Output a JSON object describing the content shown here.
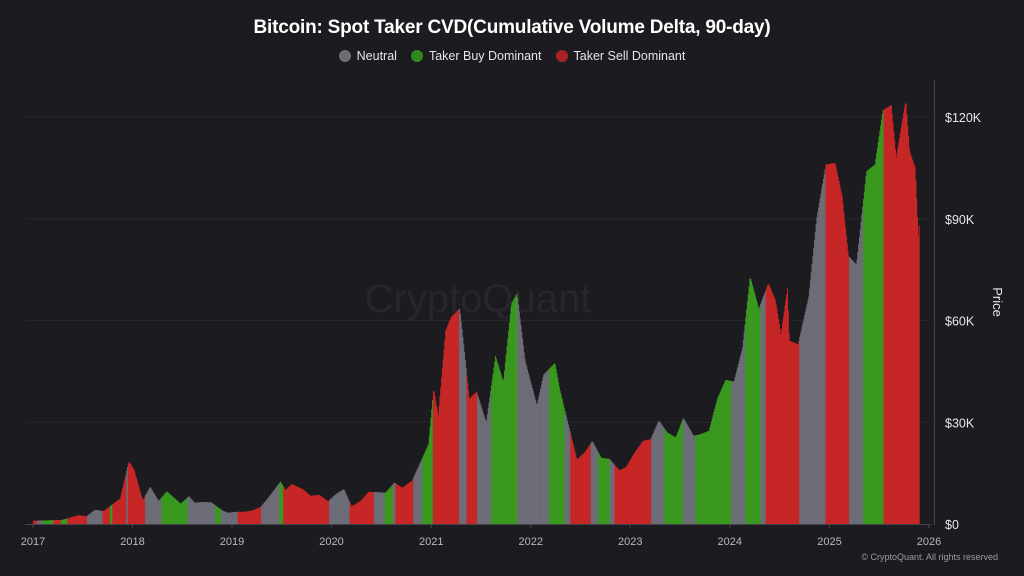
{
  "chart_data": {
    "type": "bar",
    "title": "Bitcoin: Spot Taker CVD(Cumulative Volume Delta, 90-day)",
    "ylabel": "Price",
    "xlabel": "",
    "ylim": [
      0,
      132000
    ],
    "xlim": [
      "2017-01-01",
      "2026-01-01"
    ],
    "grid": true,
    "legend_position": "top-center",
    "x_ticks": [
      "2017",
      "2018",
      "2019",
      "2020",
      "2021",
      "2022",
      "2023",
      "2024",
      "2025",
      "2026"
    ],
    "y_ticks": [
      {
        "value": 0,
        "label": "$0"
      },
      {
        "value": 30000,
        "label": "$30K"
      },
      {
        "value": 60000,
        "label": "$60K"
      },
      {
        "value": 90000,
        "label": "$90K"
      },
      {
        "value": 120000,
        "label": "$120K"
      }
    ],
    "legend": [
      {
        "key": "neutral",
        "name": "Neutral",
        "color": "#6e6e79"
      },
      {
        "key": "buy",
        "name": "Taker Buy Dominant",
        "color": "#3a9a1f"
      },
      {
        "key": "sell",
        "name": "Taker Sell Dominant",
        "color": "#c92727"
      }
    ],
    "price": [
      [
        "2017-01-01",
        1000
      ],
      [
        "2017-02-15",
        1050
      ],
      [
        "2017-03-15",
        1150
      ],
      [
        "2017-04-15",
        1200
      ],
      [
        "2017-05-20",
        2000
      ],
      [
        "2017-06-15",
        2600
      ],
      [
        "2017-07-15",
        2300
      ],
      [
        "2017-08-15",
        4200
      ],
      [
        "2017-09-15",
        3800
      ],
      [
        "2017-10-15",
        5600
      ],
      [
        "2017-11-15",
        7500
      ],
      [
        "2017-12-17",
        18500
      ],
      [
        "2018-01-05",
        16000
      ],
      [
        "2018-02-06",
        7000
      ],
      [
        "2018-03-05",
        11000
      ],
      [
        "2018-04-05",
        6800
      ],
      [
        "2018-05-05",
        9600
      ],
      [
        "2018-06-25",
        6000
      ],
      [
        "2018-07-25",
        8200
      ],
      [
        "2018-08-15",
        6300
      ],
      [
        "2018-09-15",
        6500
      ],
      [
        "2018-10-15",
        6400
      ],
      [
        "2018-11-25",
        4000
      ],
      [
        "2018-12-15",
        3300
      ],
      [
        "2019-01-15",
        3600
      ],
      [
        "2019-02-15",
        3600
      ],
      [
        "2019-03-15",
        4000
      ],
      [
        "2019-04-15",
        5100
      ],
      [
        "2019-05-15",
        8000
      ],
      [
        "2019-06-26",
        12500
      ],
      [
        "2019-07-15",
        10000
      ],
      [
        "2019-08-06",
        11800
      ],
      [
        "2019-09-15",
        10300
      ],
      [
        "2019-10-15",
        8300
      ],
      [
        "2019-11-15",
        8600
      ],
      [
        "2019-12-18",
        6700
      ],
      [
        "2020-01-15",
        8800
      ],
      [
        "2020-02-14",
        10300
      ],
      [
        "2020-03-13",
        5200
      ],
      [
        "2020-04-15",
        6800
      ],
      [
        "2020-05-15",
        9500
      ],
      [
        "2020-06-15",
        9400
      ],
      [
        "2020-07-15",
        9200
      ],
      [
        "2020-08-17",
        12200
      ],
      [
        "2020-09-15",
        10700
      ],
      [
        "2020-10-21",
        12800
      ],
      [
        "2020-11-25",
        19000
      ],
      [
        "2020-12-20",
        23500
      ],
      [
        "2021-01-08",
        40000
      ],
      [
        "2021-01-25",
        32000
      ],
      [
        "2021-02-21",
        57000
      ],
      [
        "2021-03-13",
        61000
      ],
      [
        "2021-04-14",
        63500
      ],
      [
        "2021-05-19",
        37000
      ],
      [
        "2021-06-15",
        39000
      ],
      [
        "2021-07-20",
        30000
      ],
      [
        "2021-08-23",
        49500
      ],
      [
        "2021-09-21",
        42000
      ],
      [
        "2021-10-20",
        65000
      ],
      [
        "2021-11-10",
        68000
      ],
      [
        "2021-12-10",
        48000
      ],
      [
        "2022-01-22",
        35000
      ],
      [
        "2022-02-15",
        44000
      ],
      [
        "2022-03-29",
        47500
      ],
      [
        "2022-04-15",
        40000
      ],
      [
        "2022-05-15",
        30000
      ],
      [
        "2022-06-18",
        19000
      ],
      [
        "2022-07-15",
        21000
      ],
      [
        "2022-08-13",
        24500
      ],
      [
        "2022-09-15",
        19500
      ],
      [
        "2022-10-15",
        19200
      ],
      [
        "2022-11-21",
        15800
      ],
      [
        "2022-12-15",
        16800
      ],
      [
        "2023-01-15",
        21000
      ],
      [
        "2023-02-15",
        24500
      ],
      [
        "2023-03-15",
        25000
      ],
      [
        "2023-04-14",
        30500
      ],
      [
        "2023-05-15",
        27000
      ],
      [
        "2023-06-15",
        25500
      ],
      [
        "2023-07-13",
        31300
      ],
      [
        "2023-08-20",
        26000
      ],
      [
        "2023-09-15",
        26500
      ],
      [
        "2023-10-15",
        27500
      ],
      [
        "2023-11-15",
        37000
      ],
      [
        "2023-12-15",
        42500
      ],
      [
        "2024-01-15",
        42000
      ],
      [
        "2024-02-15",
        52000
      ],
      [
        "2024-03-14",
        73000
      ],
      [
        "2024-04-15",
        63500
      ],
      [
        "2024-05-20",
        71000
      ],
      [
        "2024-06-15",
        66000
      ],
      [
        "2024-07-05",
        56000
      ],
      [
        "2024-07-29",
        69500
      ],
      [
        "2024-08-05",
        54000
      ],
      [
        "2024-09-06",
        53000
      ],
      [
        "2024-10-15",
        67000
      ],
      [
        "2024-11-13",
        90000
      ],
      [
        "2024-12-17",
        106000
      ],
      [
        "2025-01-20",
        106500
      ],
      [
        "2025-02-15",
        96500
      ],
      [
        "2025-03-10",
        79000
      ],
      [
        "2025-04-08",
        76500
      ],
      [
        "2025-05-15",
        104000
      ],
      [
        "2025-06-15",
        106000
      ],
      [
        "2025-07-14",
        122000
      ],
      [
        "2025-08-14",
        123500
      ],
      [
        "2025-09-01",
        108000
      ],
      [
        "2025-10-06",
        125000
      ],
      [
        "2025-10-20",
        110000
      ],
      [
        "2025-11-10",
        105000
      ],
      [
        "2025-11-21",
        85000
      ],
      [
        "2025-11-25",
        89000
      ]
    ],
    "regimes": [
      [
        "2017-01-01",
        "2017-01-15",
        "sell"
      ],
      [
        "2017-01-15",
        "2017-02-02",
        "neutral"
      ],
      [
        "2017-02-02",
        "2017-03-17",
        "buy"
      ],
      [
        "2017-03-17",
        "2017-04-12",
        "sell"
      ],
      [
        "2017-04-12",
        "2017-05-05",
        "buy"
      ],
      [
        "2017-05-05",
        "2017-07-16",
        "sell"
      ],
      [
        "2017-07-16",
        "2017-09-13",
        "neutral"
      ],
      [
        "2017-09-13",
        "2017-10-09",
        "sell"
      ],
      [
        "2017-10-09",
        "2017-10-17",
        "buy"
      ],
      [
        "2017-10-17",
        "2017-12-07",
        "sell"
      ],
      [
        "2017-12-07",
        "2017-12-15",
        "neutral"
      ],
      [
        "2017-12-15",
        "2018-02-14",
        "sell"
      ],
      [
        "2018-02-14",
        "2018-04-15",
        "neutral"
      ],
      [
        "2018-04-15",
        "2018-07-20",
        "buy"
      ],
      [
        "2018-07-20",
        "2018-10-30",
        "neutral"
      ],
      [
        "2018-10-30",
        "2018-11-21",
        "buy"
      ],
      [
        "2018-11-21",
        "2019-01-19",
        "neutral"
      ],
      [
        "2019-01-19",
        "2019-04-16",
        "sell"
      ],
      [
        "2019-04-16",
        "2019-06-21",
        "neutral"
      ],
      [
        "2019-06-21",
        "2019-07-06",
        "buy"
      ],
      [
        "2019-07-06",
        "2019-12-21",
        "sell"
      ],
      [
        "2019-12-21",
        "2020-03-07",
        "neutral"
      ],
      [
        "2020-03-07",
        "2020-06-03",
        "sell"
      ],
      [
        "2020-06-03",
        "2020-07-13",
        "neutral"
      ],
      [
        "2020-07-13",
        "2020-08-11",
        "buy"
      ],
      [
        "2020-08-11",
        "2020-08-22",
        "neutral"
      ],
      [
        "2020-08-22",
        "2020-10-27",
        "sell"
      ],
      [
        "2020-10-27",
        "2020-11-29",
        "neutral"
      ],
      [
        "2020-11-29",
        "2021-01-06",
        "buy"
      ],
      [
        "2021-01-06",
        "2021-04-12",
        "sell"
      ],
      [
        "2021-04-12",
        "2021-05-08",
        "neutral"
      ],
      [
        "2021-05-08",
        "2021-06-17",
        "sell"
      ],
      [
        "2021-06-17",
        "2021-08-08",
        "neutral"
      ],
      [
        "2021-08-08",
        "2021-11-10",
        "buy"
      ],
      [
        "2021-11-10",
        "2022-03-07",
        "neutral"
      ],
      [
        "2022-03-07",
        "2022-05-04",
        "buy"
      ],
      [
        "2022-05-04",
        "2022-05-26",
        "neutral"
      ],
      [
        "2022-05-26",
        "2022-08-07",
        "sell"
      ],
      [
        "2022-08-07",
        "2022-09-05",
        "neutral"
      ],
      [
        "2022-09-05",
        "2022-10-15",
        "buy"
      ],
      [
        "2022-10-15",
        "2022-11-02",
        "neutral"
      ],
      [
        "2022-11-02",
        "2023-03-18",
        "sell"
      ],
      [
        "2023-03-18",
        "2023-05-04",
        "neutral"
      ],
      [
        "2023-05-04",
        "2023-07-13",
        "buy"
      ],
      [
        "2023-07-13",
        "2023-08-26",
        "neutral"
      ],
      [
        "2023-08-26",
        "2024-01-05",
        "buy"
      ],
      [
        "2024-01-05",
        "2024-02-25",
        "neutral"
      ],
      [
        "2024-02-25",
        "2024-04-23",
        "buy"
      ],
      [
        "2024-04-23",
        "2024-05-11",
        "neutral"
      ],
      [
        "2024-05-11",
        "2024-09-12",
        "sell"
      ],
      [
        "2024-09-12",
        "2024-12-16",
        "neutral"
      ],
      [
        "2024-12-16",
        "2025-03-14",
        "sell"
      ],
      [
        "2025-03-14",
        "2025-05-04",
        "neutral"
      ],
      [
        "2025-05-04",
        "2025-07-16",
        "buy"
      ],
      [
        "2025-07-16",
        "2025-08-11",
        "sell"
      ],
      [
        "2025-08-11",
        "2025-11-25",
        "sell"
      ]
    ]
  },
  "watermark": "CryptoQuant",
  "copyright": "© CryptoQuant. All rights reserved"
}
